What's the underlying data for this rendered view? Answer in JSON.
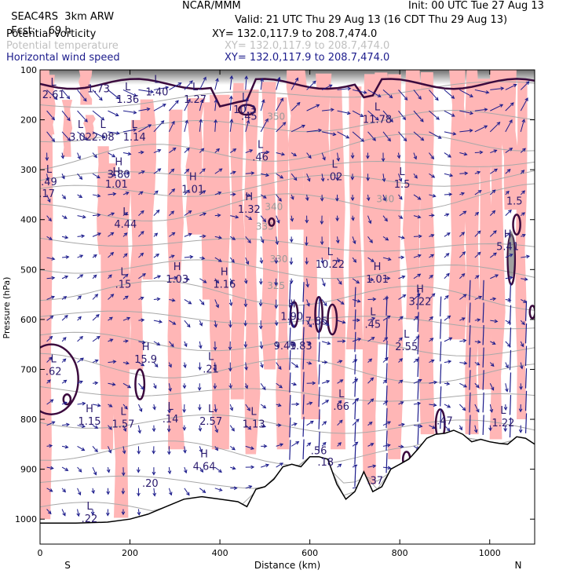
{
  "header": {
    "model": "SEAC4RS",
    "run": "3km ARW",
    "org": "NCAR/MMM",
    "init": "Init: 00 UTC Tue 27 Aug 13",
    "fcst_label": "Fcst:",
    "fcst_value": "69 h",
    "valid": "Valid: 21 UTC Thu 29 Aug 13 (16 CDT Thu 29 Aug 13)"
  },
  "fields": [
    {
      "name": "Potential vorticity",
      "xy": "XY= 132.0,117.9 to 208.7,474.0",
      "color": "#000000"
    },
    {
      "name": "Potential temperature",
      "xy": "XY= 132.0,117.9 to 208.7,474.0",
      "color": "#c0c0c0"
    },
    {
      "name": "Horizontal wind speed",
      "xy": "XY= 132.0,117.9 to 208.7,474.0",
      "color": "#1c1c8c"
    }
  ],
  "colors": {
    "pv_fill": "#ffb6b6",
    "pv_contour": "#3b0a3e",
    "theta": "#a8a8a8",
    "wind": "#1c1c8c",
    "terrain": "#000000"
  },
  "chart_data": {
    "type": "cross-section",
    "xlabel": "Distance (km)",
    "ylabel": "Pressure (hPa)",
    "xlim": [
      0,
      1100
    ],
    "ylim": [
      1050,
      100
    ],
    "xticks": [
      0,
      200,
      400,
      600,
      800,
      1000
    ],
    "yticks": [
      100,
      200,
      300,
      400,
      500,
      600,
      700,
      800,
      900,
      1000
    ],
    "end_labels": {
      "left": "S",
      "right": "N"
    },
    "terrain": [
      {
        "x": 0,
        "p": 1008
      },
      {
        "x": 80,
        "p": 1008
      },
      {
        "x": 150,
        "p": 1006
      },
      {
        "x": 200,
        "p": 1000
      },
      {
        "x": 240,
        "p": 990
      },
      {
        "x": 280,
        "p": 975
      },
      {
        "x": 320,
        "p": 960
      },
      {
        "x": 360,
        "p": 955
      },
      {
        "x": 400,
        "p": 960
      },
      {
        "x": 440,
        "p": 965
      },
      {
        "x": 460,
        "p": 975
      },
      {
        "x": 480,
        "p": 940
      },
      {
        "x": 500,
        "p": 935
      },
      {
        "x": 520,
        "p": 920
      },
      {
        "x": 540,
        "p": 895
      },
      {
        "x": 560,
        "p": 890
      },
      {
        "x": 580,
        "p": 895
      },
      {
        "x": 600,
        "p": 875
      },
      {
        "x": 620,
        "p": 875
      },
      {
        "x": 640,
        "p": 880
      },
      {
        "x": 660,
        "p": 930
      },
      {
        "x": 680,
        "p": 960
      },
      {
        "x": 700,
        "p": 945
      },
      {
        "x": 720,
        "p": 905
      },
      {
        "x": 740,
        "p": 945
      },
      {
        "x": 760,
        "p": 935
      },
      {
        "x": 780,
        "p": 900
      },
      {
        "x": 800,
        "p": 890
      },
      {
        "x": 820,
        "p": 880
      },
      {
        "x": 840,
        "p": 860
      },
      {
        "x": 860,
        "p": 838
      },
      {
        "x": 880,
        "p": 830
      },
      {
        "x": 900,
        "p": 828
      },
      {
        "x": 920,
        "p": 822
      },
      {
        "x": 940,
        "p": 830
      },
      {
        "x": 960,
        "p": 845
      },
      {
        "x": 980,
        "p": 840
      },
      {
        "x": 1000,
        "p": 845
      },
      {
        "x": 1020,
        "p": 848
      },
      {
        "x": 1040,
        "p": 850
      },
      {
        "x": 1060,
        "p": 835
      },
      {
        "x": 1080,
        "p": 838
      },
      {
        "x": 1100,
        "p": 850
      }
    ],
    "theta_contours": [
      {
        "label": "340",
        "x": 768,
        "p": 365
      },
      {
        "label": "340",
        "x": 520,
        "p": 381
      },
      {
        "label": "335",
        "x": 500,
        "p": 420
      },
      {
        "label": "330",
        "x": 531,
        "p": 485
      },
      {
        "label": "325",
        "x": 525,
        "p": 539
      },
      {
        "label": "350",
        "x": 525,
        "p": 200
      }
    ],
    "annotations": [
      {
        "kind": "H",
        "value": "3.80",
        "x": 175,
        "p": 310
      },
      {
        "kind": "H",
        "value": "1.01",
        "x": 340,
        "p": 340
      },
      {
        "kind": "H",
        "value": "1.32",
        "x": 465,
        "p": 380
      },
      {
        "kind": "H",
        "value": "1.03",
        "x": 305,
        "p": 520
      },
      {
        "kind": "H",
        "value": "1.16",
        "x": 410,
        "p": 530
      },
      {
        "kind": "H",
        "value": "1.90",
        "x": 560,
        "p": 595
      },
      {
        "kind": "H",
        "value": "1.01",
        "x": 750,
        "p": 520
      },
      {
        "kind": "H",
        "value": "3.22",
        "x": 845,
        "p": 565
      },
      {
        "kind": "H",
        "value": "5.41",
        "x": 1040,
        "p": 455
      },
      {
        "kind": "H",
        "value": "15.9",
        "x": 235,
        "p": 680
      },
      {
        "kind": "H",
        "value": "4.64",
        "x": 365,
        "p": 895
      },
      {
        "kind": "H",
        "value": "1.01",
        "x": 170,
        "p": 330
      },
      {
        "kind": "H",
        "value": "1.15",
        "x": 110,
        "p": 805
      },
      {
        "kind": "L",
        "value": "2.61",
        "x": 30,
        "p": 150
      },
      {
        "kind": "L",
        "value": "1.36",
        "x": 195,
        "p": 160
      },
      {
        "kind": "L",
        "value": "1.40",
        "x": 260,
        "p": 145
      },
      {
        "kind": "L",
        "value": "1.27",
        "x": 345,
        "p": 160
      },
      {
        "kind": "L",
        "value": "3.02",
        "x": 90,
        "p": 235
      },
      {
        "kind": "L",
        "value": "2.08",
        "x": 140,
        "p": 235
      },
      {
        "kind": "L",
        "value": "1.14",
        "x": 210,
        "p": 235
      },
      {
        "kind": "L",
        "value": "10.3",
        "x": 455,
        "p": 180
      },
      {
        "kind": "L",
        "value": "11.78",
        "x": 750,
        "p": 200
      },
      {
        "kind": "L",
        "value": ".46",
        "x": 490,
        "p": 275
      },
      {
        "kind": "L",
        "value": ".02",
        "x": 655,
        "p": 315
      },
      {
        "kind": "L",
        "value": "1.5",
        "x": 805,
        "p": 330
      },
      {
        "kind": "L",
        "value": "4.44",
        "x": 190,
        "p": 410
      },
      {
        "kind": "L",
        "value": "10.22",
        "x": 645,
        "p": 490
      },
      {
        "kind": "L",
        "value": ".15",
        "x": 185,
        "p": 530
      },
      {
        "kind": "L",
        "value": ".45",
        "x": 740,
        "p": 610
      },
      {
        "kind": "L",
        "value": "2.55",
        "x": 815,
        "p": 655
      },
      {
        "kind": "L",
        "value": ".21",
        "x": 380,
        "p": 700
      },
      {
        "kind": "L",
        "value": "1.57",
        "x": 185,
        "p": 810
      },
      {
        "kind": "L",
        "value": ".14",
        "x": 290,
        "p": 800
      },
      {
        "kind": "L",
        "value": "2.57",
        "x": 380,
        "p": 805
      },
      {
        "kind": "L",
        "value": "1.13",
        "x": 475,
        "p": 810
      },
      {
        "kind": "L",
        "value": ".66",
        "x": 670,
        "p": 775
      },
      {
        "kind": "L",
        "value": "1.22",
        "x": 1030,
        "p": 808
      },
      {
        "kind": "L",
        "value": ".22",
        "x": 110,
        "p": 1000
      },
      {
        "kind": "L",
        "value": ".62",
        "x": 30,
        "p": 705
      },
      {
        "kind": "L",
        "value": ".49",
        "x": 20,
        "p": 325
      }
    ],
    "values_unlabeled": [
      {
        "value": "1.73",
        "x": 130,
        "p": 145
      },
      {
        "value": ".45",
        "x": 465,
        "p": 200
      },
      {
        "value": ".17",
        "x": 15,
        "p": 355
      },
      {
        "value": "9.49",
        "x": 545,
        "p": 660
      },
      {
        "value": "1.83",
        "x": 580,
        "p": 660
      },
      {
        "value": "7.85",
        "x": 615,
        "p": 610
      },
      {
        "value": ".47",
        "x": 900,
        "p": 810
      },
      {
        "value": ".20",
        "x": 245,
        "p": 935
      },
      {
        "value": ".56",
        "x": 620,
        "p": 870
      },
      {
        "value": ".18",
        "x": 635,
        "p": 893
      },
      {
        "value": ".37",
        "x": 745,
        "p": 930
      },
      {
        "value": "1.5",
        "x": 1055,
        "p": 370
      }
    ]
  }
}
